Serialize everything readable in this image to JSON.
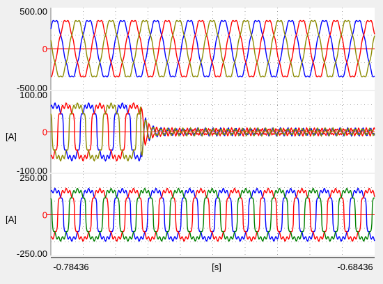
{
  "chart_data": [
    {
      "type": "line",
      "panel": "top",
      "ylabel": "",
      "ylim": [
        -500,
        500
      ],
      "y_tick_labels": {
        "top": "500.00",
        "zero": "0",
        "bottom": "-500.00"
      },
      "x_range": [
        -0.78436,
        -0.68436
      ],
      "grid": true,
      "series": [
        {
          "color": "#0000ff",
          "amplitude": 350,
          "period_s": 0.0104,
          "phase_deg": 0,
          "offset": 0
        },
        {
          "color": "#ff0000",
          "amplitude": 350,
          "period_s": 0.0104,
          "phase_deg": 120,
          "offset": 0
        },
        {
          "color": "#8b8b00",
          "amplitude": 350,
          "period_s": 0.0104,
          "phase_deg": 240,
          "offset": 0
        }
      ]
    },
    {
      "type": "line",
      "panel": "middle",
      "ylabel": "[A]",
      "ylim": [
        -100,
        100
      ],
      "y_tick_labels": {
        "top": "100.00",
        "zero": "0",
        "bottom": "-100.00"
      },
      "x_range": [
        -0.78436,
        -0.68436
      ],
      "grid": true,
      "event_time_s": -0.7566,
      "series": [
        {
          "color": "#0000ff",
          "amplitude": 65,
          "period_s": 0.0104,
          "phase_deg": 0,
          "amplitude_after_event": 7
        },
        {
          "color": "#ff0000",
          "amplitude": 65,
          "period_s": 0.0104,
          "phase_deg": 120,
          "amplitude_after_event": 7
        },
        {
          "color": "#8b8b00",
          "amplitude": 65,
          "period_s": 0.0104,
          "phase_deg": 240,
          "amplitude_after_event": 7
        }
      ]
    },
    {
      "type": "line",
      "panel": "bottom",
      "ylabel": "[A]",
      "ylim": [
        -250,
        250
      ],
      "y_tick_labels": {
        "top": "250.00",
        "zero": "0",
        "bottom": "-250.00"
      },
      "x_range": [
        -0.78436,
        -0.68436
      ],
      "grid": true,
      "series": [
        {
          "color": "#0000ff",
          "amplitude": 150,
          "period_s": 0.0104,
          "phase_deg": 0,
          "offset": 0
        },
        {
          "color": "#ff0000",
          "amplitude": 150,
          "period_s": 0.0104,
          "phase_deg": 120,
          "offset": 0
        },
        {
          "color": "#008000",
          "amplitude": 150,
          "period_s": 0.0104,
          "phase_deg": 240,
          "offset": 0
        }
      ]
    }
  ],
  "x_axis": {
    "left_label": "-0.78436",
    "unit_label": "[s]",
    "right_label": "-0.68436"
  },
  "colors": {
    "background": "#ffffff",
    "frame": "#f0f0f0",
    "grid": "#a0a0a0",
    "axis": "#000000",
    "zero": "#ff0000"
  }
}
